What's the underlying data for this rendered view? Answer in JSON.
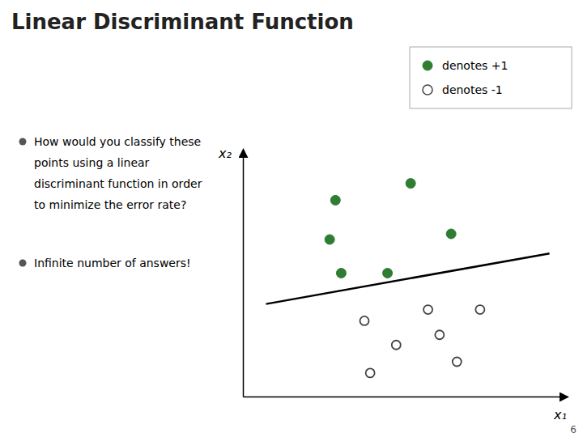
{
  "chart_data": {
    "type": "scatter",
    "title": "Linear Discriminant Function",
    "annotations": [
      [
        "How would you classify these",
        "points using a linear",
        "discriminant function in order",
        "to minimize the error rate?"
      ],
      [
        "Infinite number of answers!"
      ]
    ],
    "page_number": "6",
    "xlabel": "x₁",
    "ylabel": "x₂",
    "xlim": [
      -0.1,
      5.5
    ],
    "ylim": [
      -0.2,
      4.2
    ],
    "tick_labels": false,
    "grid": false,
    "legend": "upper right",
    "series": [
      {
        "name": "denotes +1",
        "color": "#2E7D32",
        "marker": "circle",
        "x": [
          1.5,
          1.4,
          2.8,
          3.5,
          1.6,
          2.4
        ],
        "values": [
          3.3,
          2.6,
          3.6,
          2.7,
          2.0,
          2.0
        ]
      },
      {
        "name": "denotes -1",
        "color": "#444444",
        "marker": "open-circle",
        "x": [
          2.0,
          3.1,
          4.0,
          2.55,
          3.3,
          2.1,
          3.6
        ],
        "values": [
          1.15,
          1.35,
          1.35,
          0.72,
          0.9,
          0.22,
          0.42
        ]
      },
      {
        "type": "line",
        "color": "#000000",
        "line_style": "solid",
        "x": [
          0.3,
          5.2
        ],
        "values": [
          1.45,
          2.35
        ]
      }
    ]
  }
}
